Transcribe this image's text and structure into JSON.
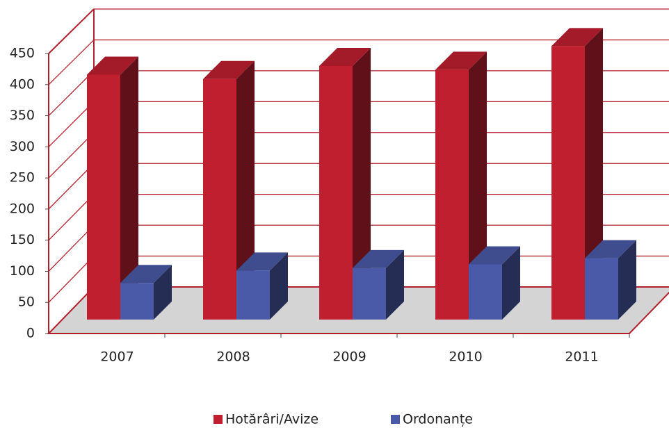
{
  "chart_data": {
    "type": "bar3d",
    "categories": [
      "2007",
      "2008",
      "2009",
      "2010",
      "2011"
    ],
    "series": [
      {
        "name": "Hotărâri/Avize",
        "color": "#c01f30",
        "values": [
          395,
          388,
          409,
          403,
          441
        ]
      },
      {
        "name": "Ordonanțe",
        "color": "#4a5aa8",
        "values": [
          59,
          79,
          83,
          89,
          99
        ]
      }
    ],
    "ylim": [
      0,
      450
    ],
    "yticks": [
      0,
      50,
      100,
      150,
      200,
      250,
      300,
      350,
      400,
      450
    ],
    "grid": true
  }
}
